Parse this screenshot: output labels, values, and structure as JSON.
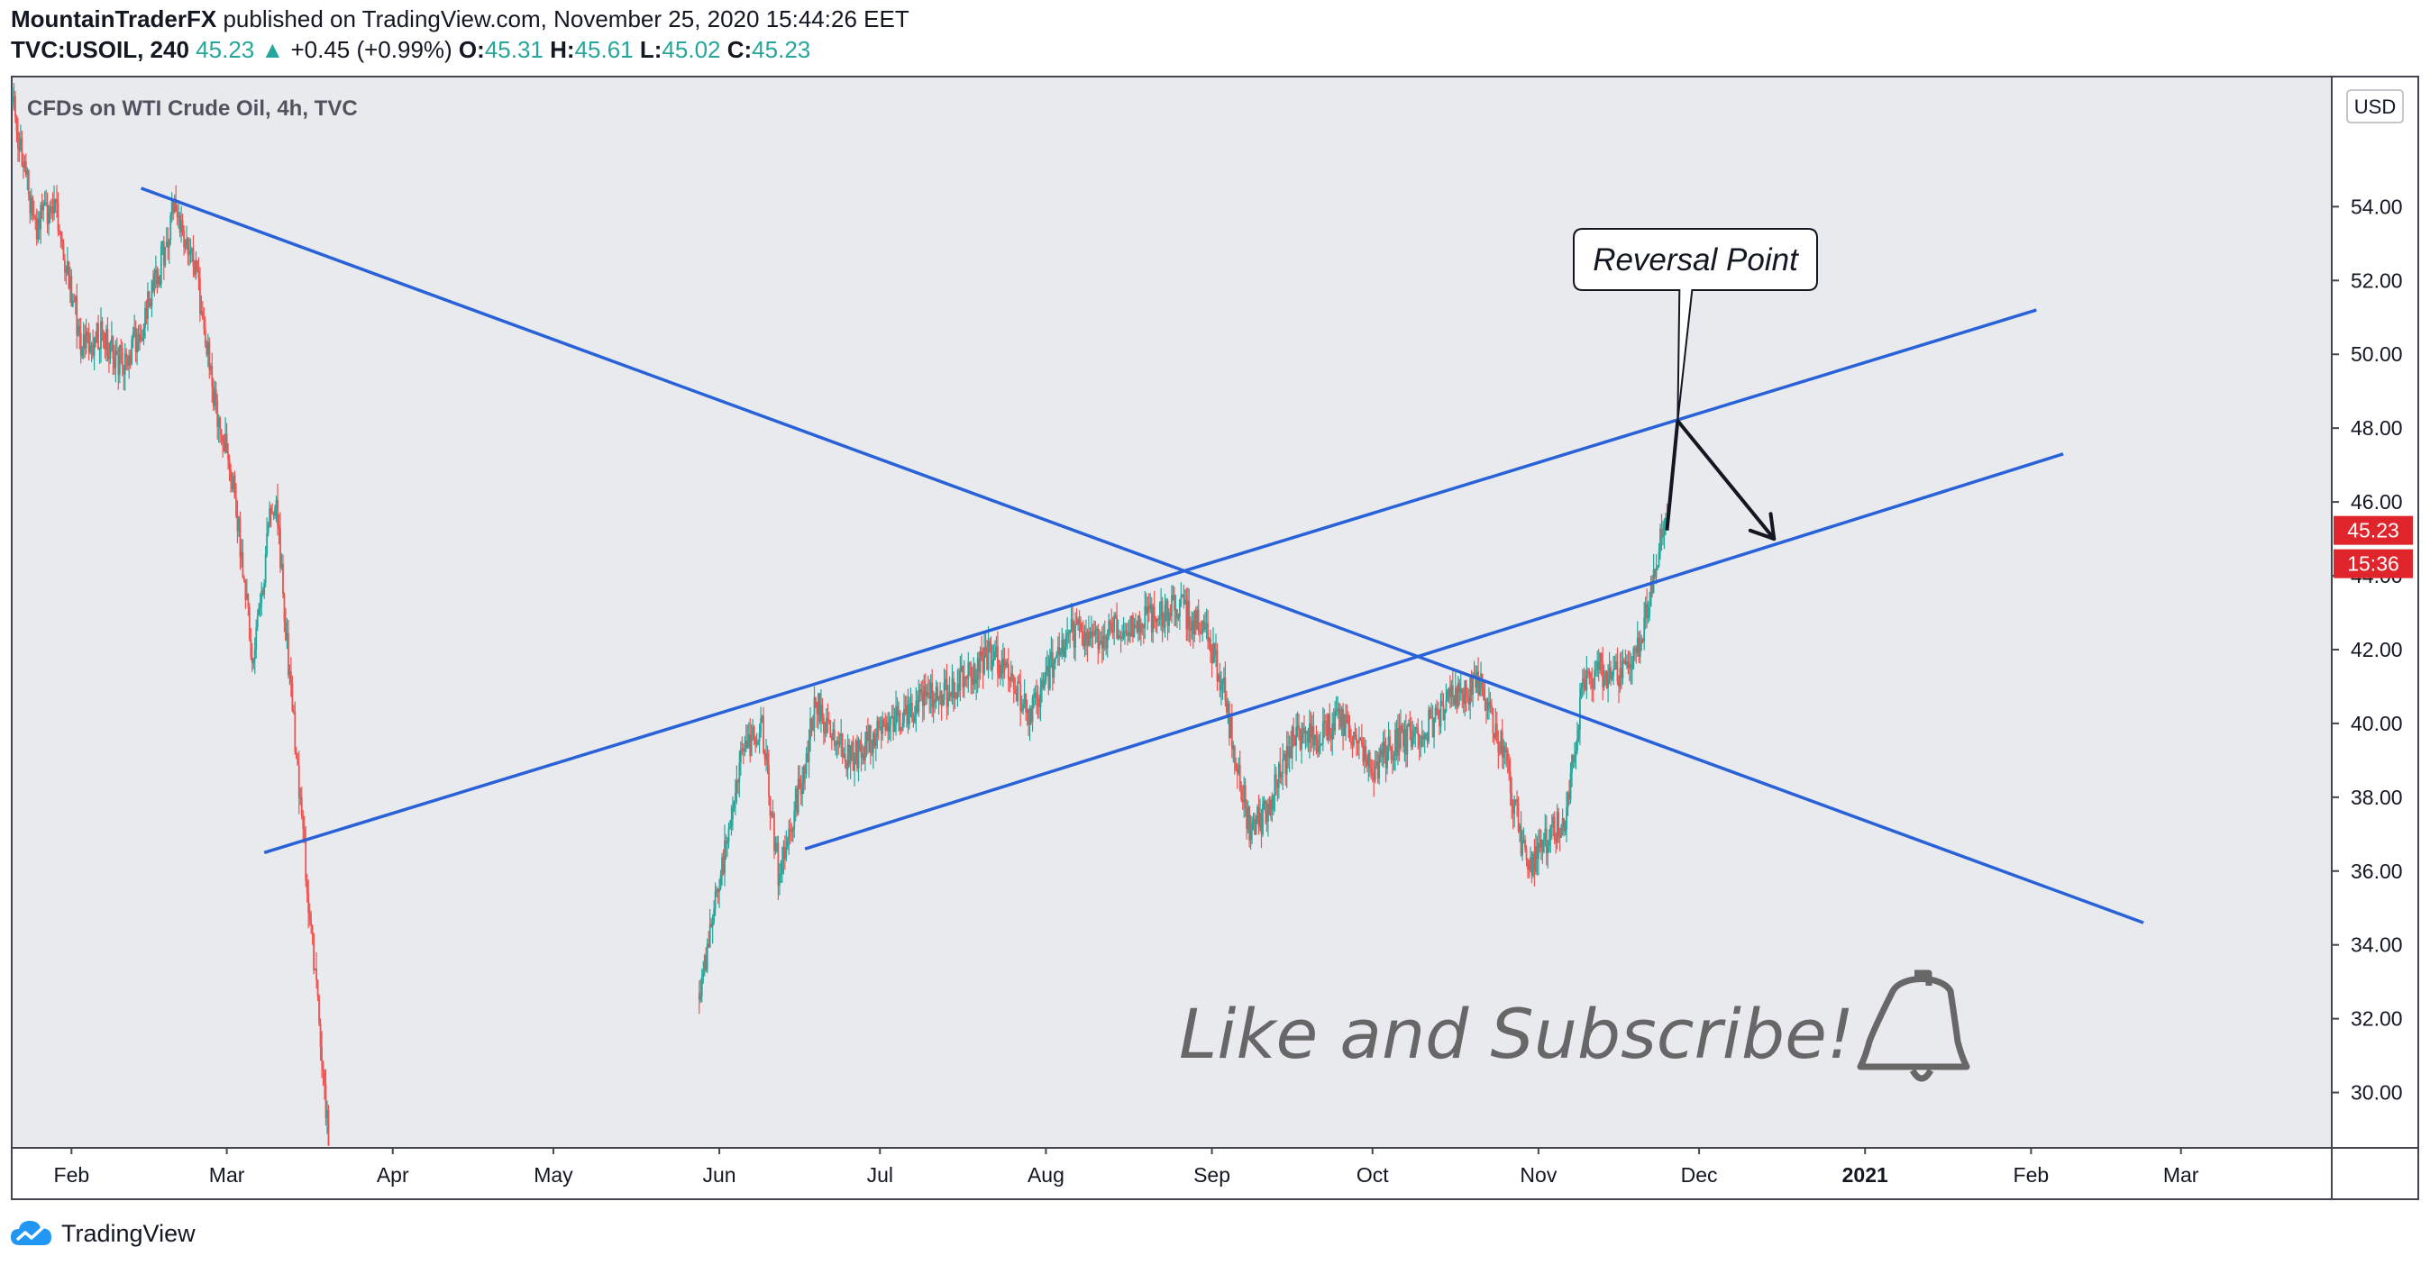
{
  "header": {
    "author": "MountainTraderFX",
    "published_text": " published on TradingView.com, November 25, 2020 15:44:26 EET",
    "symbol": "TVC:USOIL, 240",
    "last": "45.23",
    "arrow": "▲",
    "change": "+0.45 (+0.99%)",
    "o_label": "O:",
    "o": "45.31",
    "h_label": "H:",
    "h": "45.61",
    "l_label": "L:",
    "l": "45.02",
    "c_label": "C:",
    "c": "45.23"
  },
  "footer": {
    "brand": "TradingView"
  },
  "colors": {
    "up": "#26a69a",
    "down": "#ef5350",
    "trend": "#2962d8",
    "background": "#e9eaee",
    "price_tag": "#e0242b"
  },
  "chart_data": {
    "type": "candlestick",
    "title": "CFDs on WTI Crude Oil, 4h, TVC",
    "currency": "USD",
    "y_ticks": [
      "30.00",
      "32.00",
      "34.00",
      "36.00",
      "38.00",
      "40.00",
      "42.00",
      "44.00",
      "46.00",
      "48.00",
      "50.00",
      "52.00",
      "54.00"
    ],
    "ylim": [
      28.5,
      57.5
    ],
    "x_ticks": [
      "Feb",
      "Mar",
      "Apr",
      "May",
      "Jun",
      "Jul",
      "Aug",
      "Sep",
      "Oct",
      "Nov",
      "Dec",
      "2021",
      "Feb",
      "Mar"
    ],
    "x_tick_dates": [
      "2020-02-01",
      "2020-03-01",
      "2020-04-01",
      "2020-05-01",
      "2020-06-01",
      "2020-07-01",
      "2020-08-01",
      "2020-09-01",
      "2020-10-01",
      "2020-11-01",
      "2020-12-01",
      "2021-01-01",
      "2021-02-01",
      "2021-03-01"
    ],
    "xlim": [
      "2020-01-21",
      "2021-03-29"
    ],
    "last_price": "45.23",
    "countdown": "15:36",
    "price_path": [
      [
        "2020-01-21",
        56.8
      ],
      [
        "2020-01-25",
        53.5
      ],
      [
        "2020-01-29",
        54.0
      ],
      [
        "2020-02-03",
        50.2
      ],
      [
        "2020-02-07",
        50.5
      ],
      [
        "2020-02-11",
        49.6
      ],
      [
        "2020-02-17",
        52.0
      ],
      [
        "2020-02-20",
        54.0
      ],
      [
        "2020-02-24",
        52.5
      ],
      [
        "2020-02-28",
        48.5
      ],
      [
        "2020-03-02",
        46.8
      ],
      [
        "2020-03-06",
        41.5
      ],
      [
        "2020-03-09",
        45.5
      ],
      [
        "2020-03-10",
        46.2
      ],
      [
        "2020-03-13",
        40.8
      ],
      [
        "2020-03-19",
        30.5
      ],
      [
        "2020-03-20",
        28.6
      ],
      [
        "2020-05-28",
        32.5
      ],
      [
        "2020-06-02",
        36.5
      ],
      [
        "2020-06-05",
        39.2
      ],
      [
        "2020-06-09",
        39.8
      ],
      [
        "2020-06-12",
        36.0
      ],
      [
        "2020-06-16",
        38.2
      ],
      [
        "2020-06-19",
        40.5
      ],
      [
        "2020-06-25",
        39.0
      ],
      [
        "2020-07-01",
        39.8
      ],
      [
        "2020-07-08",
        40.5
      ],
      [
        "2020-07-15",
        41.0
      ],
      [
        "2020-07-22",
        41.9
      ],
      [
        "2020-07-29",
        40.2
      ],
      [
        "2020-08-05",
        42.5
      ],
      [
        "2020-08-12",
        42.4
      ],
      [
        "2020-08-19",
        42.8
      ],
      [
        "2020-08-26",
        43.1
      ],
      [
        "2020-08-31",
        42.6
      ],
      [
        "2020-09-03",
        41.0
      ],
      [
        "2020-09-08",
        37.2
      ],
      [
        "2020-09-11",
        37.5
      ],
      [
        "2020-09-16",
        39.5
      ],
      [
        "2020-09-21",
        39.6
      ],
      [
        "2020-09-25",
        40.2
      ],
      [
        "2020-10-01",
        38.8
      ],
      [
        "2020-10-06",
        39.5
      ],
      [
        "2020-10-12",
        40.0
      ],
      [
        "2020-10-16",
        40.8
      ],
      [
        "2020-10-21",
        41.0
      ],
      [
        "2020-10-26",
        39.0
      ],
      [
        "2020-10-30",
        35.8
      ],
      [
        "2020-11-02",
        36.8
      ],
      [
        "2020-11-06",
        37.5
      ],
      [
        "2020-11-09",
        40.8
      ],
      [
        "2020-11-12",
        41.5
      ],
      [
        "2020-11-16",
        41.2
      ],
      [
        "2020-11-20",
        42.3
      ],
      [
        "2020-11-24",
        45.0
      ],
      [
        "2020-11-25",
        45.23
      ]
    ],
    "trend_lines": [
      {
        "from": [
          "2020-02-14",
          54.5
        ],
        "to": [
          "2021-02-22",
          34.6
        ]
      },
      {
        "from": [
          "2020-03-08",
          36.5
        ],
        "to": [
          "2021-02-02",
          51.2
        ]
      },
      {
        "from": [
          "2020-06-17",
          36.6
        ],
        "to": [
          "2021-02-07",
          47.3
        ]
      }
    ],
    "arrow": {
      "from": [
        "2020-11-27",
        48.2
      ],
      "to": [
        "2020-12-15",
        45.0
      ]
    },
    "annotation": {
      "text": "Reversal Point",
      "point": [
        "2020-11-27",
        48.2
      ]
    },
    "watermark_text": "Like and Subscribe!"
  }
}
